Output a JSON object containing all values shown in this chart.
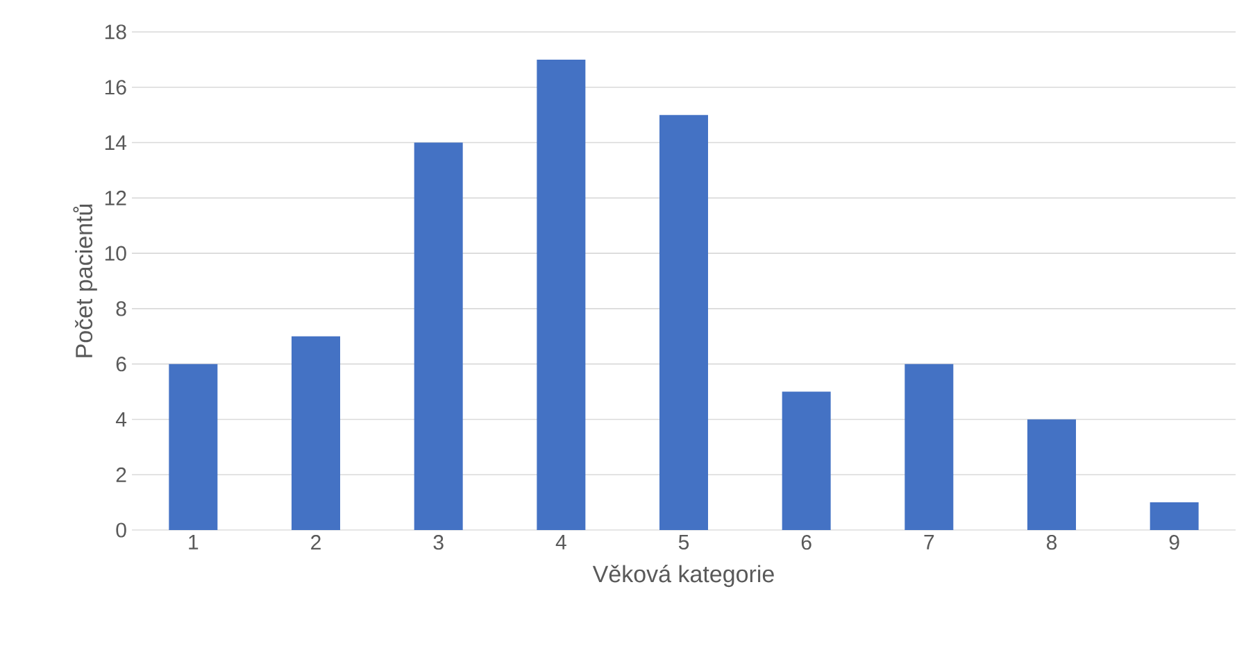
{
  "chart_data": {
    "type": "bar",
    "xlabel": "Věková kategorie",
    "ylabel": "Počet pacientů",
    "categories": [
      "1",
      "2",
      "3",
      "4",
      "5",
      "6",
      "7",
      "8",
      "9"
    ],
    "values": [
      6,
      7,
      14,
      17,
      15,
      5,
      6,
      4,
      1
    ],
    "color": "#4472c4",
    "ylim": [
      0,
      18
    ],
    "yticks": [
      0,
      2,
      4,
      6,
      8,
      10,
      12,
      14,
      16,
      18
    ],
    "grid": "y"
  }
}
